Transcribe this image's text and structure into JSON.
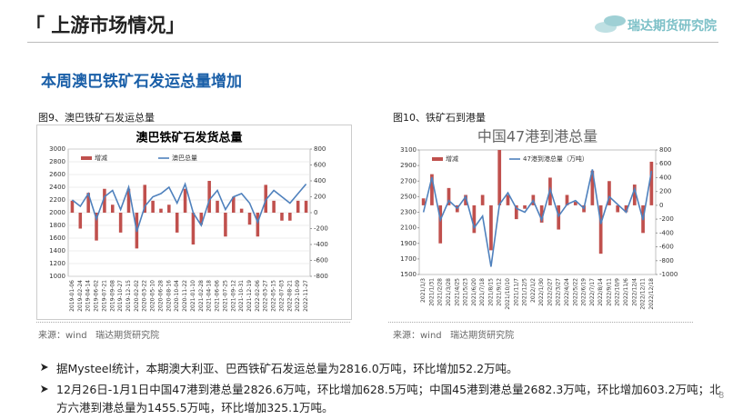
{
  "header": {
    "title": "「 上游市场情况」",
    "logo": "瑞达期货研究院"
  },
  "subtitle": "本周澳巴铁矿石发运总量增加",
  "figures": [
    {
      "caption": "图9、澳巴铁矿石发运总量",
      "source": "来源：wind   瑞达期货研究院"
    },
    {
      "caption": "图10、铁矿石到港量",
      "source": "来源：wind   瑞达期货研究院"
    }
  ],
  "bullets": [
    "据Mysteel统计，本期澳大利亚、巴西铁矿石发运总量为2816.0万吨，环比增加52.2万吨。",
    "12月26日-1月1日中国47港到港总量2826.6万吨，环比增加628.5万吨；中国45港到港总量2682.3万吨，环比增加603.2万吨；北方六港到港总量为1455.5万吨，环比增加325.1万吨。"
  ],
  "page_number": "8",
  "chart_data": [
    {
      "type": "combo",
      "title": "澳巴铁矿石发货总量",
      "categories": [
        "2019-01-06",
        "2019-02-24",
        "2019-04-14",
        "2019-06-02",
        "2019-07-21",
        "2019-09-08",
        "2019-10-27",
        "2019-12-15",
        "2020-02-02",
        "2020-03-22",
        "2020-05-10",
        "2020-06-28",
        "2020-08-16",
        "2020-10-04",
        "2020-11-22",
        "2021-01-10",
        "2021-02-28",
        "2021-04-18",
        "2021-06-06",
        "2021-07-25",
        "2021-09-12",
        "2021-10-31",
        "2021-12-19",
        "2022-02-06",
        "2022-03-27",
        "2022-05-15",
        "2022-07-03",
        "2022-08-21",
        "2022-10-09",
        "2022-11-27"
      ],
      "series": [
        {
          "name": "增减",
          "type": "bar",
          "axis": "y2",
          "color": "#c0504d",
          "values": [
            150,
            -200,
            250,
            -350,
            300,
            100,
            -250,
            300,
            -450,
            350,
            150,
            50,
            100,
            -250,
            300,
            -400,
            -150,
            400,
            150,
            -300,
            200,
            50,
            -150,
            -300,
            350,
            150,
            -100,
            -100,
            150,
            150
          ]
        },
        {
          "name": "澳巴总量",
          "type": "line",
          "axis": "y",
          "color": "#4f81bd",
          "values": [
            2200,
            2100,
            2300,
            1900,
            2250,
            2350,
            2050,
            2400,
            1700,
            2100,
            2250,
            2300,
            2400,
            2150,
            2450,
            2000,
            1800,
            2200,
            2350,
            2050,
            2250,
            2300,
            2150,
            1850,
            2200,
            2350,
            2250,
            2150,
            2300,
            2450
          ]
        }
      ],
      "ylim": [
        1000,
        3000
      ],
      "yticks": [
        1000,
        1200,
        1400,
        1600,
        1800,
        2000,
        2200,
        2400,
        2600,
        2800,
        3000
      ],
      "y2lim": [
        -800,
        800
      ],
      "y2ticks": [
        -800,
        -600,
        -400,
        -200,
        0,
        200,
        400,
        600,
        800
      ],
      "grid": true
    },
    {
      "type": "combo",
      "title": "中国47港到港总量",
      "categories": [
        "2021/1/3",
        "2021/1/31",
        "2021/2/28",
        "2021/3/28",
        "2021/4/25",
        "2021/5/23",
        "2021/6/20",
        "2021/7/18",
        "2021/8/15",
        "2021/9/12",
        "2021/10/10",
        "2021/11/7",
        "2021/12/5",
        "2022/1/2",
        "2022/1/30",
        "2022/2/27",
        "2022/3/27",
        "2022/4/24",
        "2022/5/22",
        "2022/6/19",
        "2022/7/17",
        "2022/8/14",
        "2022/9/11",
        "2022/10/9",
        "2022/11/6",
        "2022/12/4",
        "2022/12/11",
        "2022/12/18"
      ],
      "series": [
        {
          "name": "增减",
          "type": "bar",
          "axis": "y2",
          "color": "#c0504d",
          "values": [
            100,
            450,
            -550,
            250,
            -100,
            150,
            -400,
            150,
            -650,
            800,
            150,
            -200,
            -50,
            150,
            -250,
            400,
            -350,
            150,
            50,
            -100,
            500,
            -700,
            350,
            -100,
            -100,
            300,
            -400,
            630
          ]
        },
        {
          "name": "47港到港总量（万吨）",
          "type": "line",
          "axis": "y",
          "color": "#4f81bd",
          "values": [
            2300,
            2750,
            2200,
            2450,
            2350,
            2500,
            2100,
            2250,
            1600,
            2400,
            2550,
            2350,
            2300,
            2450,
            2200,
            2600,
            2250,
            2400,
            2450,
            2350,
            2850,
            2150,
            2500,
            2400,
            2300,
            2600,
            2200,
            2830
          ]
        }
      ],
      "ylim": [
        1500,
        3100
      ],
      "yticks": [
        1500,
        1700,
        1900,
        2100,
        2300,
        2500,
        2700,
        2900,
        3100
      ],
      "y2lim": [
        -1000,
        800
      ],
      "y2ticks": [
        -1000,
        -800,
        -600,
        -400,
        -200,
        0,
        200,
        400,
        600,
        800
      ],
      "grid": false
    }
  ]
}
